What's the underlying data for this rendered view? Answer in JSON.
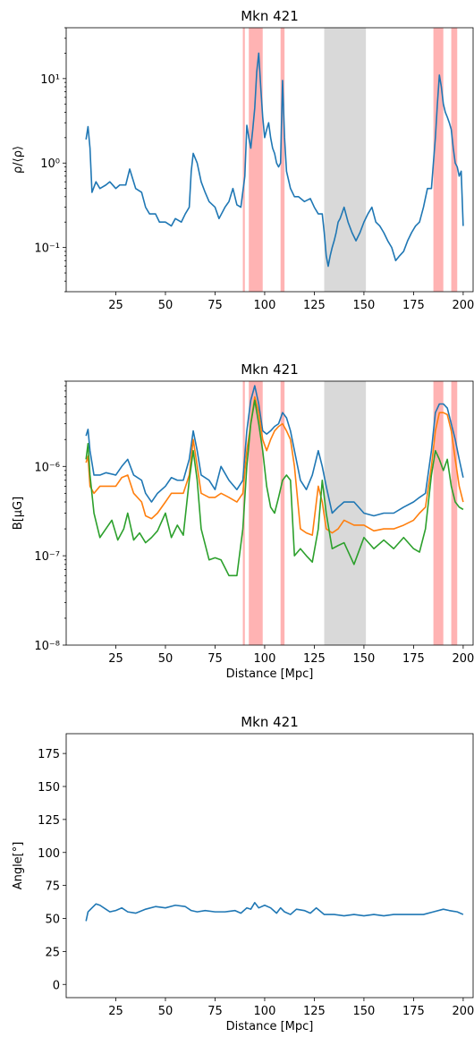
{
  "chart_data": [
    {
      "type": "line",
      "title": "Mkn 421",
      "xlabel": "",
      "ylabel": "ρ/⟨ρ⟩",
      "yscale": "log",
      "xlim": [
        0,
        205
      ],
      "ylim": [
        0.03,
        40
      ],
      "xticks": [
        25,
        50,
        75,
        100,
        125,
        150,
        175,
        200
      ],
      "xtick_labels": [
        "25",
        "50",
        "75",
        "100",
        "125",
        "150",
        "175",
        "200"
      ],
      "yticks": [
        0.1,
        1,
        10
      ],
      "ytick_labels": [
        "10⁻¹",
        "10⁰",
        "10¹"
      ],
      "grid": false,
      "shaded_regions": [
        {
          "x0": 89,
          "x1": 90,
          "color": "#ffb3b3"
        },
        {
          "x0": 92,
          "x1": 99,
          "color": "#ffb3b3"
        },
        {
          "x0": 108,
          "x1": 110,
          "color": "#ffb3b3"
        },
        {
          "x0": 130,
          "x1": 151,
          "color": "#d9d9d9"
        },
        {
          "x0": 185,
          "x1": 190,
          "color": "#ffb3b3"
        },
        {
          "x0": 194,
          "x1": 197,
          "color": "#ffb3b3"
        }
      ],
      "series": [
        {
          "color": "#1f77b4",
          "x": [
            10,
            11,
            12,
            13,
            15,
            17,
            20,
            22,
            25,
            27,
            30,
            32,
            35,
            38,
            40,
            42,
            45,
            47,
            50,
            53,
            55,
            58,
            60,
            62,
            63,
            64,
            66,
            68,
            70,
            72,
            75,
            77,
            80,
            82,
            84,
            86,
            88,
            90,
            91,
            92,
            93,
            94,
            95,
            96,
            97,
            98,
            99,
            100,
            101,
            102,
            103,
            104,
            105,
            106,
            107,
            108,
            109,
            110,
            111,
            113,
            115,
            117,
            120,
            123,
            125,
            127,
            129,
            130,
            131,
            132,
            133,
            134,
            135,
            136,
            137,
            138,
            140,
            142,
            144,
            146,
            148,
            150,
            152,
            154,
            156,
            158,
            160,
            162,
            164,
            166,
            168,
            170,
            172,
            174,
            176,
            178,
            180,
            182,
            184,
            185,
            186,
            187,
            188,
            189,
            190,
            191,
            192,
            193,
            194,
            195,
            196,
            197,
            198,
            199,
            200
          ],
          "y": [
            1.9,
            2.7,
            1.5,
            0.45,
            0.6,
            0.5,
            0.55,
            0.6,
            0.5,
            0.55,
            0.55,
            0.85,
            0.5,
            0.45,
            0.3,
            0.25,
            0.25,
            0.2,
            0.2,
            0.18,
            0.22,
            0.2,
            0.25,
            0.3,
            0.8,
            1.3,
            1.0,
            0.6,
            0.45,
            0.35,
            0.3,
            0.22,
            0.3,
            0.35,
            0.5,
            0.32,
            0.3,
            0.7,
            2.8,
            2.0,
            1.5,
            2.5,
            4.5,
            12,
            20,
            8,
            3.5,
            2.0,
            2.5,
            3.0,
            2.0,
            1.5,
            1.3,
            1.0,
            0.9,
            1.0,
            9.5,
            2.0,
            0.8,
            0.5,
            0.4,
            0.4,
            0.35,
            0.38,
            0.3,
            0.25,
            0.25,
            0.15,
            0.08,
            0.06,
            0.08,
            0.1,
            0.12,
            0.15,
            0.2,
            0.22,
            0.3,
            0.2,
            0.15,
            0.12,
            0.15,
            0.2,
            0.25,
            0.3,
            0.2,
            0.18,
            0.15,
            0.12,
            0.1,
            0.07,
            0.08,
            0.09,
            0.12,
            0.15,
            0.18,
            0.2,
            0.3,
            0.5,
            0.5,
            1.0,
            2.0,
            5.0,
            11,
            8,
            5,
            4,
            3.5,
            3.0,
            2.5,
            1.5,
            1.0,
            0.9,
            0.7,
            0.8,
            0.18
          ]
        }
      ]
    },
    {
      "type": "line",
      "title": "Mkn 421",
      "xlabel": "Distance [Mpc]",
      "ylabel": "B[μG]",
      "yscale": "log",
      "xlim": [
        0,
        205
      ],
      "ylim": [
        1e-08,
        9e-06
      ],
      "xticks": [
        25,
        50,
        75,
        100,
        125,
        150,
        175,
        200
      ],
      "xtick_labels": [
        "25",
        "50",
        "75",
        "100",
        "125",
        "150",
        "175",
        "200"
      ],
      "yticks": [
        1e-08,
        1e-07,
        1e-06
      ],
      "ytick_labels": [
        "10⁻⁸",
        "10⁻⁷",
        "10⁻⁶"
      ],
      "grid": false,
      "shaded_regions": [
        {
          "x0": 89,
          "x1": 90,
          "color": "#ffb3b3"
        },
        {
          "x0": 92,
          "x1": 99,
          "color": "#ffb3b3"
        },
        {
          "x0": 108,
          "x1": 110,
          "color": "#ffb3b3"
        },
        {
          "x0": 130,
          "x1": 151,
          "color": "#d9d9d9"
        },
        {
          "x0": 185,
          "x1": 190,
          "color": "#ffb3b3"
        },
        {
          "x0": 194,
          "x1": 197,
          "color": "#ffb3b3"
        }
      ],
      "series": [
        {
          "color": "#1f77b4",
          "x": [
            10,
            11,
            12,
            14,
            17,
            20,
            25,
            28,
            31,
            34,
            38,
            40,
            43,
            46,
            50,
            53,
            56,
            59,
            62,
            64,
            66,
            68,
            72,
            75,
            78,
            82,
            86,
            89,
            91,
            93,
            95,
            97,
            99,
            101,
            103,
            105,
            107,
            109,
            111,
            113,
            115,
            118,
            121,
            124,
            127,
            129,
            131,
            134,
            137,
            140,
            145,
            150,
            155,
            160,
            165,
            170,
            175,
            178,
            181,
            184,
            186,
            188,
            190,
            192,
            194,
            196,
            198,
            200
          ],
          "y": [
            2.2e-06,
            2.6e-06,
            1.5e-06,
            8e-07,
            8e-07,
            8.5e-07,
            8e-07,
            1e-06,
            1.2e-06,
            8e-07,
            7e-07,
            5e-07,
            4e-07,
            5e-07,
            6e-07,
            7.5e-07,
            7e-07,
            7e-07,
            1.2e-06,
            2.5e-06,
            1.5e-06,
            8e-07,
            7e-07,
            5.5e-07,
            1e-06,
            7e-07,
            5.5e-07,
            7e-07,
            2.5e-06,
            5.5e-06,
            8e-06,
            5e-06,
            2.5e-06,
            2.3e-06,
            2.5e-06,
            2.8e-06,
            3e-06,
            4e-06,
            3.5e-06,
            2.5e-06,
            1.5e-06,
            7e-07,
            5.5e-07,
            8e-07,
            1.5e-06,
            1e-06,
            6e-07,
            3e-07,
            3.5e-07,
            4e-07,
            4e-07,
            3e-07,
            2.8e-07,
            3e-07,
            3e-07,
            3.5e-07,
            4e-07,
            4.5e-07,
            5e-07,
            1.5e-06,
            4e-06,
            5e-06,
            5e-06,
            4.5e-06,
            3e-06,
            2e-06,
            1.2e-06,
            7.5e-07
          ]
        },
        {
          "color": "#ff7f0e",
          "x": [
            10,
            11,
            12,
            14,
            17,
            20,
            25,
            28,
            31,
            34,
            38,
            40,
            43,
            46,
            50,
            53,
            56,
            59,
            62,
            64,
            66,
            68,
            72,
            75,
            78,
            82,
            86,
            89,
            91,
            93,
            95,
            97,
            99,
            101,
            103,
            105,
            107,
            109,
            111,
            113,
            115,
            118,
            121,
            124,
            127,
            129,
            131,
            134,
            137,
            140,
            145,
            150,
            155,
            160,
            165,
            170,
            175,
            178,
            181,
            184,
            186,
            188,
            190,
            192,
            194,
            196,
            198,
            200
          ],
          "y": [
            1.1e-06,
            1.3e-06,
            6e-07,
            5e-07,
            6e-07,
            6e-07,
            6e-07,
            7.5e-07,
            8e-07,
            5e-07,
            4e-07,
            2.8e-07,
            2.6e-07,
            3e-07,
            4e-07,
            5e-07,
            5e-07,
            5e-07,
            8e-07,
            2e-06,
            1e-06,
            5e-07,
            4.5e-07,
            4.5e-07,
            5e-07,
            4.5e-07,
            4e-07,
            5e-07,
            1.5e-06,
            3e-06,
            6e-06,
            4e-06,
            2e-06,
            1.5e-06,
            2e-06,
            2.5e-06,
            2.8e-06,
            3e-06,
            2.5e-06,
            2e-06,
            1e-06,
            2e-07,
            1.8e-07,
            1.7e-07,
            6e-07,
            4e-07,
            2e-07,
            1.8e-07,
            2e-07,
            2.5e-07,
            2.2e-07,
            2.2e-07,
            1.9e-07,
            2e-07,
            2e-07,
            2.2e-07,
            2.5e-07,
            3e-07,
            3.5e-07,
            1e-06,
            2.5e-06,
            4e-06,
            4e-06,
            3.8e-06,
            2.5e-06,
            1.2e-06,
            6e-07,
            4e-07
          ]
        },
        {
          "color": "#2ca02c",
          "x": [
            10,
            11,
            12,
            14,
            17,
            20,
            23,
            26,
            29,
            31,
            34,
            37,
            40,
            43,
            46,
            50,
            53,
            56,
            59,
            62,
            64,
            66,
            68,
            72,
            75,
            78,
            82,
            86,
            89,
            91,
            93,
            95,
            97,
            99,
            101,
            103,
            105,
            107,
            109,
            111,
            113,
            115,
            118,
            121,
            124,
            127,
            129,
            131,
            134,
            137,
            140,
            145,
            150,
            155,
            160,
            165,
            170,
            175,
            178,
            181,
            184,
            186,
            188,
            190,
            192,
            194,
            196,
            198,
            200
          ],
          "y": [
            1.2e-06,
            1.8e-06,
            8e-07,
            3e-07,
            1.6e-07,
            2e-07,
            2.5e-07,
            1.5e-07,
            2e-07,
            3e-07,
            1.5e-07,
            1.8e-07,
            1.4e-07,
            1.6e-07,
            1.9e-07,
            3e-07,
            1.6e-07,
            2.2e-07,
            1.7e-07,
            7e-07,
            1.5e-06,
            7e-07,
            2e-07,
            9e-08,
            9.5e-08,
            9e-08,
            6e-08,
            6e-08,
            2e-07,
            1e-06,
            3e-06,
            5.5e-06,
            3e-06,
            1.5e-06,
            6e-07,
            3.5e-07,
            3e-07,
            4.5e-07,
            7e-07,
            8e-07,
            7e-07,
            1e-07,
            1.2e-07,
            1e-07,
            8.5e-08,
            2e-07,
            7e-07,
            3e-07,
            1.2e-07,
            1.3e-07,
            1.4e-07,
            8e-08,
            1.6e-07,
            1.2e-07,
            1.5e-07,
            1.2e-07,
            1.6e-07,
            1.2e-07,
            1.1e-07,
            2e-07,
            8e-07,
            1.5e-06,
            1.2e-06,
            9e-07,
            1.2e-06,
            6e-07,
            4e-07,
            3.5e-07,
            3.3e-07
          ]
        }
      ]
    },
    {
      "type": "line",
      "title": "Mkn 421",
      "xlabel": "Distance [Mpc]",
      "ylabel": "Angle[°]",
      "yscale": "linear",
      "xlim": [
        0,
        205
      ],
      "ylim": [
        -10,
        190
      ],
      "xticks": [
        25,
        50,
        75,
        100,
        125,
        150,
        175,
        200
      ],
      "xtick_labels": [
        "25",
        "50",
        "75",
        "100",
        "125",
        "150",
        "175",
        "200"
      ],
      "yticks": [
        0,
        25,
        50,
        75,
        100,
        125,
        150,
        175
      ],
      "ytick_labels": [
        "0",
        "25",
        "50",
        "75",
        "100",
        "125",
        "150",
        "175"
      ],
      "grid": false,
      "shaded_regions": [],
      "series": [
        {
          "color": "#1f77b4",
          "x": [
            10,
            11,
            13,
            15,
            17,
            20,
            22,
            25,
            28,
            31,
            35,
            40,
            45,
            50,
            55,
            60,
            63,
            66,
            70,
            75,
            80,
            85,
            88,
            91,
            93,
            95,
            97,
            100,
            103,
            106,
            108,
            110,
            113,
            116,
            120,
            123,
            126,
            130,
            135,
            140,
            145,
            150,
            155,
            160,
            165,
            170,
            175,
            180,
            185,
            190,
            193,
            197,
            200
          ],
          "y": [
            48,
            55,
            58,
            61,
            60,
            57,
            55,
            56,
            58,
            55,
            54,
            57,
            59,
            58,
            60,
            59,
            56,
            55,
            56,
            55,
            55,
            56,
            54,
            58,
            57,
            62,
            58,
            60,
            58,
            54,
            58,
            55,
            53,
            57,
            56,
            54,
            58,
            53,
            53,
            52,
            53,
            52,
            53,
            52,
            53,
            53,
            53,
            53,
            55,
            57,
            56,
            55,
            53
          ]
        }
      ]
    }
  ]
}
